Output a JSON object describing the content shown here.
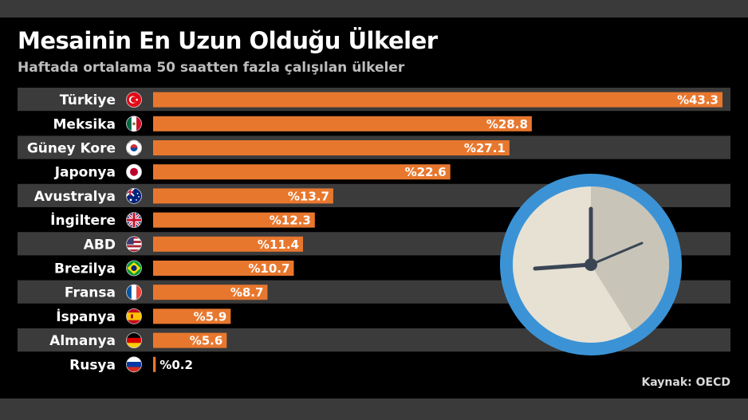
{
  "header": {
    "title": "Mesainin En Uzun Olduğu Ülkeler",
    "subtitle": "Haftada ortalama 50 saatten fazla çalışılan ülkeler"
  },
  "footer": {
    "source": "Kaynak: OECD"
  },
  "colors": {
    "bar": "#e8772e",
    "row_stripe": "#3b3b3b",
    "clock_ring": "#3b93d6",
    "clock_face": "#e7e1d3",
    "clock_shade": "#c9c4b8",
    "clock_hands": "#3a4654"
  },
  "chart_data": {
    "type": "bar",
    "orientation": "horizontal",
    "categories": [
      "Türkiye",
      "Meksika",
      "Güney Kore",
      "Japonya",
      "Avustralya",
      "İngiltere",
      "ABD",
      "Brezilya",
      "Fransa",
      "İspanya",
      "Almanya",
      "Rusya"
    ],
    "values": [
      43.3,
      28.8,
      27.1,
      22.6,
      13.7,
      12.3,
      11.4,
      10.7,
      8.7,
      5.9,
      5.6,
      0.2
    ],
    "value_labels": [
      "%43.3",
      "%28.8",
      "%27.1",
      "%22.6",
      "%13.7",
      "%12.3",
      "%11.4",
      "%10.7",
      "%8.7",
      "%5.9",
      "%5.6",
      "%0.2"
    ],
    "flags": [
      "turkey-flag-icon",
      "mexico-flag-icon",
      "south-korea-flag-icon",
      "japan-flag-icon",
      "australia-flag-icon",
      "uk-flag-icon",
      "usa-flag-icon",
      "brazil-flag-icon",
      "france-flag-icon",
      "spain-flag-icon",
      "germany-flag-icon",
      "russia-flag-icon"
    ],
    "xlim": [
      0,
      43.3
    ],
    "grid": false,
    "legend": "none",
    "decoration": "clock-icon"
  }
}
